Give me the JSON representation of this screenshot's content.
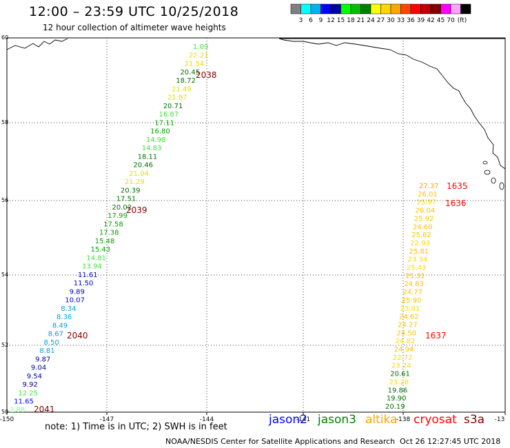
{
  "header": {
    "title": "12:00 – 23:59 UTC 10/25/2018",
    "subtitle": "12 hour collection of altimeter wave heights"
  },
  "legend": {
    "unit": "(ft)",
    "ticks": [
      "3",
      "6",
      "9",
      "12",
      "15",
      "18",
      "21",
      "24",
      "27",
      "30",
      "33",
      "36",
      "39",
      "42",
      "45",
      "70"
    ],
    "colors": [
      "#808080",
      "#00ffff",
      "#00b0f0",
      "#0000ff",
      "#0000a0",
      "#00ff00",
      "#00c000",
      "#008000",
      "#ffff00",
      "#ffd700",
      "#ffa500",
      "#ff4500",
      "#ff0000",
      "#c00000",
      "#800000",
      "#ff00ff",
      "#ffa0ff",
      "#000000"
    ]
  },
  "map": {
    "lon_labels": [
      "-150",
      "-147",
      "-144",
      "-141",
      "-138",
      "-13"
    ],
    "lat_labels": [
      "60",
      "58",
      "56",
      "54",
      "52",
      "50"
    ]
  },
  "passes": {
    "left_track": [
      {
        "v": "2.88",
        "c": "#80ff80"
      },
      {
        "v": "11.65",
        "c": "#0000ff"
      },
      {
        "v": "12.25",
        "c": "#40e040"
      },
      {
        "v": "9.92",
        "c": "#0000a0"
      },
      {
        "v": "9.54",
        "c": "#0000a0"
      },
      {
        "v": "9.04",
        "c": "#0000a0"
      },
      {
        "v": "9.87",
        "c": "#0000a0"
      },
      {
        "v": "8.81",
        "c": "#00a0e0"
      },
      {
        "v": "8.50",
        "c": "#00a0e0"
      },
      {
        "v": "8.67",
        "c": "#00a0e0"
      },
      {
        "v": "8.49",
        "c": "#00a0e0"
      },
      {
        "v": "8.36",
        "c": "#00a0e0"
      },
      {
        "v": "8.34",
        "c": "#00a0e0"
      },
      {
        "v": "10.07",
        "c": "#0000c0"
      },
      {
        "v": "9.89",
        "c": "#0000c0"
      },
      {
        "v": "11.50",
        "c": "#0000c0"
      },
      {
        "v": "11.61",
        "c": "#0000c0"
      },
      {
        "v": "13.94",
        "c": "#40e040"
      },
      {
        "v": "14.81",
        "c": "#40e040"
      },
      {
        "v": "15.43",
        "c": "#00a000"
      },
      {
        "v": "15.48",
        "c": "#00a000"
      },
      {
        "v": "17.38",
        "c": "#00a000"
      },
      {
        "v": "17.58",
        "c": "#00a000"
      },
      {
        "v": "17.99",
        "c": "#00a000"
      },
      {
        "v": "20.02",
        "c": "#007000"
      },
      {
        "v": "17.51",
        "c": "#007000"
      },
      {
        "v": "20.39",
        "c": "#007000"
      },
      {
        "v": "21.29",
        "c": "#e0e000"
      },
      {
        "v": "21.04",
        "c": "#e0e000"
      },
      {
        "v": "20.46",
        "c": "#007000"
      },
      {
        "v": "18.11",
        "c": "#007000"
      },
      {
        "v": "14.83",
        "c": "#40e040"
      },
      {
        "v": "14.98",
        "c": "#40e040"
      },
      {
        "v": "16.80",
        "c": "#00a000"
      },
      {
        "v": "17.11",
        "c": "#00a000"
      },
      {
        "v": "16.87",
        "c": "#40e040"
      },
      {
        "v": "20.71",
        "c": "#007000"
      },
      {
        "v": "21.87",
        "c": "#e0e000"
      },
      {
        "v": "21.49",
        "c": "#e0e000"
      },
      {
        "v": "18.72",
        "c": "#007000"
      },
      {
        "v": "20.45",
        "c": "#007000"
      },
      {
        "v": "21.54",
        "c": "#e0e000"
      },
      {
        "v": "22.21",
        "c": "#e0e000"
      },
      {
        "v": "1.09",
        "c": "#40e040"
      }
    ],
    "right_track": [
      {
        "v": "27.37",
        "c": "#ffa500"
      },
      {
        "v": "26.01",
        "c": "#ffc000"
      },
      {
        "v": "25.97",
        "c": "#ffd700"
      },
      {
        "v": "26.04",
        "c": "#ffc000"
      },
      {
        "v": "25.92",
        "c": "#ffc000"
      },
      {
        "v": "24.60",
        "c": "#ffc000"
      },
      {
        "v": "25.82",
        "c": "#ffc000"
      },
      {
        "v": "22.93",
        "c": "#ffd700"
      },
      {
        "v": "25.81",
        "c": "#ffc000"
      },
      {
        "v": "23.34",
        "c": "#ffd700"
      },
      {
        "v": "25.43",
        "c": "#ffd700"
      },
      {
        "v": "25.31",
        "c": "#ffc000"
      },
      {
        "v": "24.83",
        "c": "#ffc000"
      },
      {
        "v": "24.77",
        "c": "#ffc000"
      },
      {
        "v": "25.90",
        "c": "#ffc000"
      },
      {
        "v": "23.01",
        "c": "#ffd700"
      },
      {
        "v": "24.62",
        "c": "#ffc000"
      },
      {
        "v": "24.27",
        "c": "#ffc000"
      },
      {
        "v": "24.50",
        "c": "#ffc000"
      },
      {
        "v": "24.82",
        "c": "#ffd700"
      },
      {
        "v": "24.94",
        "c": "#ffc000"
      },
      {
        "v": "22.72",
        "c": "#ffd700"
      },
      {
        "v": "23.24",
        "c": "#ffd700"
      },
      {
        "v": "20.61",
        "c": "#007000"
      },
      {
        "v": "23.28",
        "c": "#ffd700"
      },
      {
        "v": "19.86",
        "c": "#007000"
      },
      {
        "v": "19.90",
        "c": "#007000"
      },
      {
        "v": "20.19",
        "c": "#007000"
      }
    ],
    "time_labels": [
      {
        "t": "2038",
        "c": "#800000"
      },
      {
        "t": "2039",
        "c": "#800000"
      },
      {
        "t": "2040",
        "c": "#800000"
      },
      {
        "t": "2041",
        "c": "#800000"
      },
      {
        "t": "1635",
        "c": "#ff0000"
      },
      {
        "t": "1636",
        "c": "#ff0000"
      },
      {
        "t": "1637",
        "c": "#ff0000"
      }
    ]
  },
  "footer": {
    "note": "note: 1) Time is in UTC; 2) SWH is in feet",
    "satellites": [
      {
        "name": "jason2",
        "color": "#0000ff"
      },
      {
        "name": "jason3",
        "color": "#008000"
      },
      {
        "name": "altika",
        "color": "#ffa500"
      },
      {
        "name": "cryosat",
        "color": "#ff0000"
      },
      {
        "name": "s3a",
        "color": "#800000"
      }
    ],
    "credit": "NOAA/NESDIS Center for Satellite Applications and Research",
    "timestamp": "Oct 26 12:27:45 UTC 2018"
  }
}
